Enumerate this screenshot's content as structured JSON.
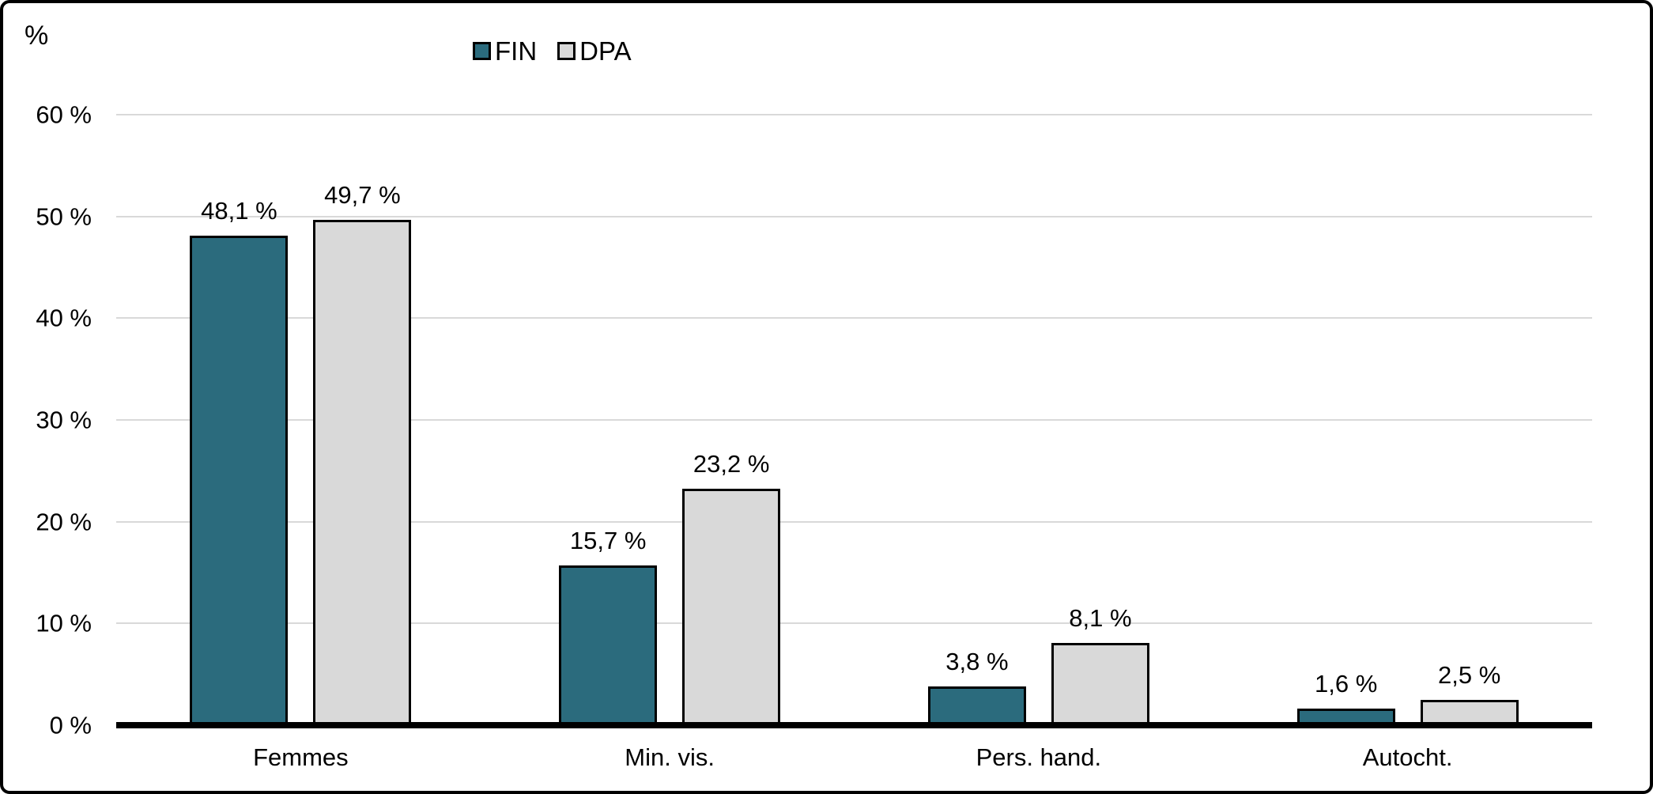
{
  "chart_data": {
    "type": "bar",
    "title": "",
    "ylabel": "%",
    "xlabel": "",
    "categories": [
      "Femmes",
      "Min. vis.",
      "Pers. hand.",
      "Autocht."
    ],
    "series": [
      {
        "name": "FIN",
        "color": "#2b6b7d",
        "values": [
          48.1,
          15.7,
          3.8,
          1.6
        ],
        "value_labels": [
          "48,1 %",
          "15,7 %",
          "3,8 %",
          "1,6 %"
        ]
      },
      {
        "name": "DPA",
        "color": "#d9d9d9",
        "values": [
          49.7,
          23.2,
          8.1,
          2.5
        ],
        "value_labels": [
          "49,7 %",
          "23,2 %",
          "8,1 %",
          "2,5 %"
        ]
      }
    ],
    "y_axis": {
      "min": 0,
      "max": 60,
      "step": 10,
      "tick_labels": [
        "0 %",
        "10 %",
        "20 %",
        "30 %",
        "40 %",
        "50 %",
        "60 %"
      ]
    },
    "legend": {
      "position": "top",
      "entries": [
        "FIN",
        "DPA"
      ]
    },
    "grid": true,
    "colors": {
      "bar_border": "#000000",
      "gridline": "#d9d9d9",
      "axis_line": "#000000",
      "text": "#000000",
      "background": "#ffffff"
    }
  }
}
